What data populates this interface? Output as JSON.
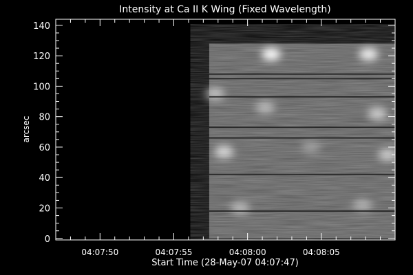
{
  "chart_data": {
    "type": "heatmap",
    "title": "Intensity at Ca II K Wing (Fixed Wavelength)",
    "xlabel": "Start Time (28-May-07 04:07:47)",
    "ylabel": "arcsec",
    "xlim": [
      0,
      23
    ],
    "ylim": [
      -1,
      144
    ],
    "x_ticks": [
      {
        "value": 3,
        "label": "04:07:50"
      },
      {
        "value": 8,
        "label": "04:07:55"
      },
      {
        "value": 13,
        "label": "04:08:00"
      },
      {
        "value": 18,
        "label": "04:08:05"
      }
    ],
    "y_ticks": [
      {
        "value": 0,
        "label": "0"
      },
      {
        "value": 20,
        "label": "20"
      },
      {
        "value": 40,
        "label": "40"
      },
      {
        "value": 60,
        "label": "60"
      },
      {
        "value": 80,
        "label": "80"
      },
      {
        "value": 100,
        "label": "100"
      },
      {
        "value": 120,
        "label": "120"
      },
      {
        "value": 140,
        "label": "140"
      }
    ],
    "data_extent": {
      "x_start": 10.4,
      "x_end": 23,
      "y_start": 0,
      "y_end": 128
    },
    "colormap": "grayscale",
    "bright_regions": [
      {
        "x": 14.6,
        "y": 121,
        "level": 1.0
      },
      {
        "x": 21.2,
        "y": 121,
        "level": 0.95
      },
      {
        "x": 10.8,
        "y": 95,
        "level": 0.75
      },
      {
        "x": 14.2,
        "y": 86,
        "level": 0.7
      },
      {
        "x": 21.8,
        "y": 82,
        "level": 0.8
      },
      {
        "x": 11.4,
        "y": 57,
        "level": 0.85
      },
      {
        "x": 22.5,
        "y": 55,
        "level": 0.8
      },
      {
        "x": 17.3,
        "y": 60,
        "level": 0.55
      },
      {
        "x": 12.5,
        "y": 20,
        "level": 0.7
      },
      {
        "x": 20.8,
        "y": 22,
        "level": 0.65
      }
    ],
    "dark_lines": [
      18,
      42,
      66,
      73,
      93,
      105,
      108
    ],
    "colors": {
      "background": "#000000",
      "axes": "#ffffff",
      "text": "#ffffff"
    }
  }
}
